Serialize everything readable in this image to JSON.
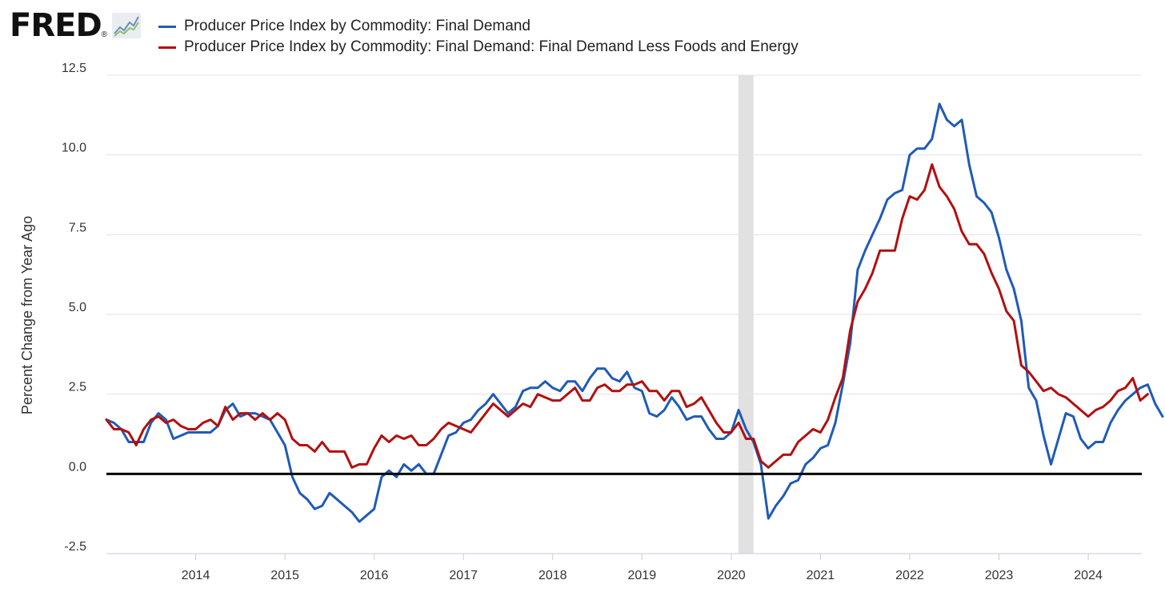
{
  "header": {
    "logo_text": "FRED",
    "logo_reg": "®"
  },
  "chart_data": {
    "type": "line",
    "ylabel": "Percent Change from Year Ago",
    "xlabel": "",
    "ylim": [
      -2.5,
      12.5
    ],
    "xlim": [
      2013.0,
      2024.6
    ],
    "y_ticks": [
      -2.5,
      0.0,
      2.5,
      5.0,
      7.5,
      10.0,
      12.5
    ],
    "y_tick_labels": [
      "-2.5",
      "0.0",
      "2.5",
      "5.0",
      "7.5",
      "10.0",
      "12.5"
    ],
    "x_ticks": [
      2014,
      2015,
      2016,
      2017,
      2018,
      2019,
      2020,
      2021,
      2022,
      2023,
      2024
    ],
    "x_tick_labels": [
      "2014",
      "2015",
      "2016",
      "2017",
      "2018",
      "2019",
      "2020",
      "2021",
      "2022",
      "2023",
      "2024"
    ],
    "grid": true,
    "zero_line": true,
    "recession": {
      "start": 2020.08,
      "end": 2020.25
    },
    "series": [
      {
        "name": "Producer Price Index by Commodity: Final Demand",
        "color": "#1f5bb8",
        "x_start": 2013.0,
        "step": 0.08333,
        "values": [
          1.7,
          1.6,
          1.4,
          1.0,
          1.0,
          1.0,
          1.6,
          1.9,
          1.7,
          1.1,
          1.2,
          1.3,
          1.3,
          1.3,
          1.3,
          1.5,
          2.0,
          2.2,
          1.8,
          1.9,
          1.9,
          1.8,
          1.7,
          1.3,
          0.9,
          -0.1,
          -0.6,
          -0.8,
          -1.1,
          -1.0,
          -0.6,
          -0.8,
          -1.0,
          -1.2,
          -1.5,
          -1.3,
          -1.1,
          -0.1,
          0.1,
          -0.1,
          0.3,
          0.1,
          0.3,
          0.0,
          0.0,
          0.6,
          1.2,
          1.3,
          1.6,
          1.7,
          2.0,
          2.2,
          2.5,
          2.2,
          1.9,
          2.1,
          2.6,
          2.7,
          2.7,
          2.9,
          2.7,
          2.6,
          2.9,
          2.9,
          2.6,
          3.0,
          3.3,
          3.3,
          3.0,
          2.9,
          3.2,
          2.7,
          2.6,
          1.9,
          1.8,
          2.0,
          2.4,
          2.1,
          1.7,
          1.8,
          1.8,
          1.4,
          1.1,
          1.1,
          1.3,
          2.0,
          1.4,
          1.0,
          0.3,
          -1.4,
          -1.0,
          -0.7,
          -0.3,
          -0.2,
          0.3,
          0.5,
          0.8,
          0.9,
          1.6,
          2.8,
          4.1,
          6.4,
          7.0,
          7.5,
          8.0,
          8.6,
          8.8,
          8.9,
          10.0,
          10.2,
          10.2,
          10.5,
          11.6,
          11.1,
          10.9,
          11.1,
          9.7,
          8.7,
          8.5,
          8.2,
          7.4,
          6.4,
          5.8,
          4.8,
          2.7,
          2.3,
          1.2,
          0.3,
          1.1,
          1.9,
          1.8,
          1.1,
          0.8,
          1.0,
          1.0,
          1.6,
          2.0,
          2.3,
          2.5,
          2.7,
          2.8,
          2.2,
          1.8
        ]
      },
      {
        "name": "Producer Price Index by Commodity: Final Demand: Final Demand Less Foods and Energy",
        "color": "#b30f0f",
        "x_start": 2013.0,
        "step": 0.08333,
        "values": [
          1.7,
          1.4,
          1.4,
          1.3,
          0.9,
          1.4,
          1.7,
          1.8,
          1.6,
          1.7,
          1.5,
          1.4,
          1.4,
          1.6,
          1.7,
          1.5,
          2.1,
          1.7,
          1.9,
          1.9,
          1.7,
          1.9,
          1.7,
          1.9,
          1.7,
          1.1,
          0.9,
          0.9,
          0.7,
          1.0,
          0.7,
          0.7,
          0.7,
          0.2,
          0.3,
          0.3,
          0.8,
          1.2,
          1.0,
          1.2,
          1.1,
          1.2,
          0.9,
          0.9,
          1.1,
          1.4,
          1.6,
          1.5,
          1.4,
          1.3,
          1.6,
          1.9,
          2.2,
          2.0,
          1.8,
          2.0,
          2.2,
          2.1,
          2.5,
          2.4,
          2.3,
          2.3,
          2.5,
          2.7,
          2.3,
          2.3,
          2.7,
          2.8,
          2.6,
          2.6,
          2.8,
          2.8,
          2.9,
          2.6,
          2.6,
          2.3,
          2.6,
          2.6,
          2.1,
          2.2,
          2.4,
          2.0,
          1.6,
          1.3,
          1.3,
          1.6,
          1.1,
          1.1,
          0.4,
          0.2,
          0.4,
          0.6,
          0.6,
          1.0,
          1.2,
          1.4,
          1.3,
          1.7,
          2.4,
          3.0,
          4.5,
          5.4,
          5.8,
          6.3,
          7.0,
          7.0,
          7.0,
          8.0,
          8.7,
          8.6,
          8.9,
          9.7,
          9.0,
          8.7,
          8.3,
          7.6,
          7.2,
          7.2,
          6.9,
          6.3,
          5.8,
          5.1,
          4.8,
          3.4,
          3.2,
          2.9,
          2.6,
          2.7,
          2.5,
          2.4,
          2.2,
          2.0,
          1.8,
          2.0,
          2.1,
          2.3,
          2.6,
          2.7,
          3.0,
          2.3,
          2.5
        ]
      }
    ]
  }
}
